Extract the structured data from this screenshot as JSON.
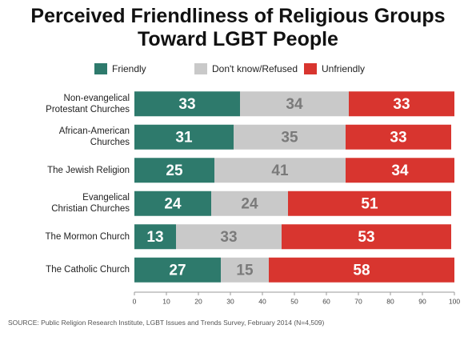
{
  "chart_data": {
    "type": "stacked-barh",
    "title": "Perceived Friendliness of Religious Groups\nToward LGBT People",
    "categories": [
      "Non-evangelical\nProtestant Churches",
      "African-American\nChurches",
      "The Jewish Religion",
      "Evangelical\nChristian Churches",
      "The Mormon Church",
      "The Catholic Church"
    ],
    "series": [
      {
        "name": "Friendly",
        "color": "#2e7a6c",
        "label_color": "#ffffff",
        "values": [
          33,
          31,
          25,
          24,
          13,
          27
        ]
      },
      {
        "name": "Don't know/Refused",
        "color": "#c9c9c9",
        "label_color": "#7a7a7a",
        "values": [
          34,
          35,
          41,
          24,
          33,
          15
        ]
      },
      {
        "name": "Unfriendly",
        "color": "#d8352f",
        "label_color": "#ffffff",
        "values": [
          33,
          33,
          34,
          51,
          53,
          58
        ]
      }
    ],
    "xlim": [
      0,
      100
    ],
    "xticks": [
      0,
      10,
      20,
      30,
      40,
      50,
      60,
      70,
      80,
      90,
      100
    ],
    "source": "SOURCE: Public Religion Research Institute, LGBT Issues and Trends Survey, February 2014 (N=4,509)"
  }
}
